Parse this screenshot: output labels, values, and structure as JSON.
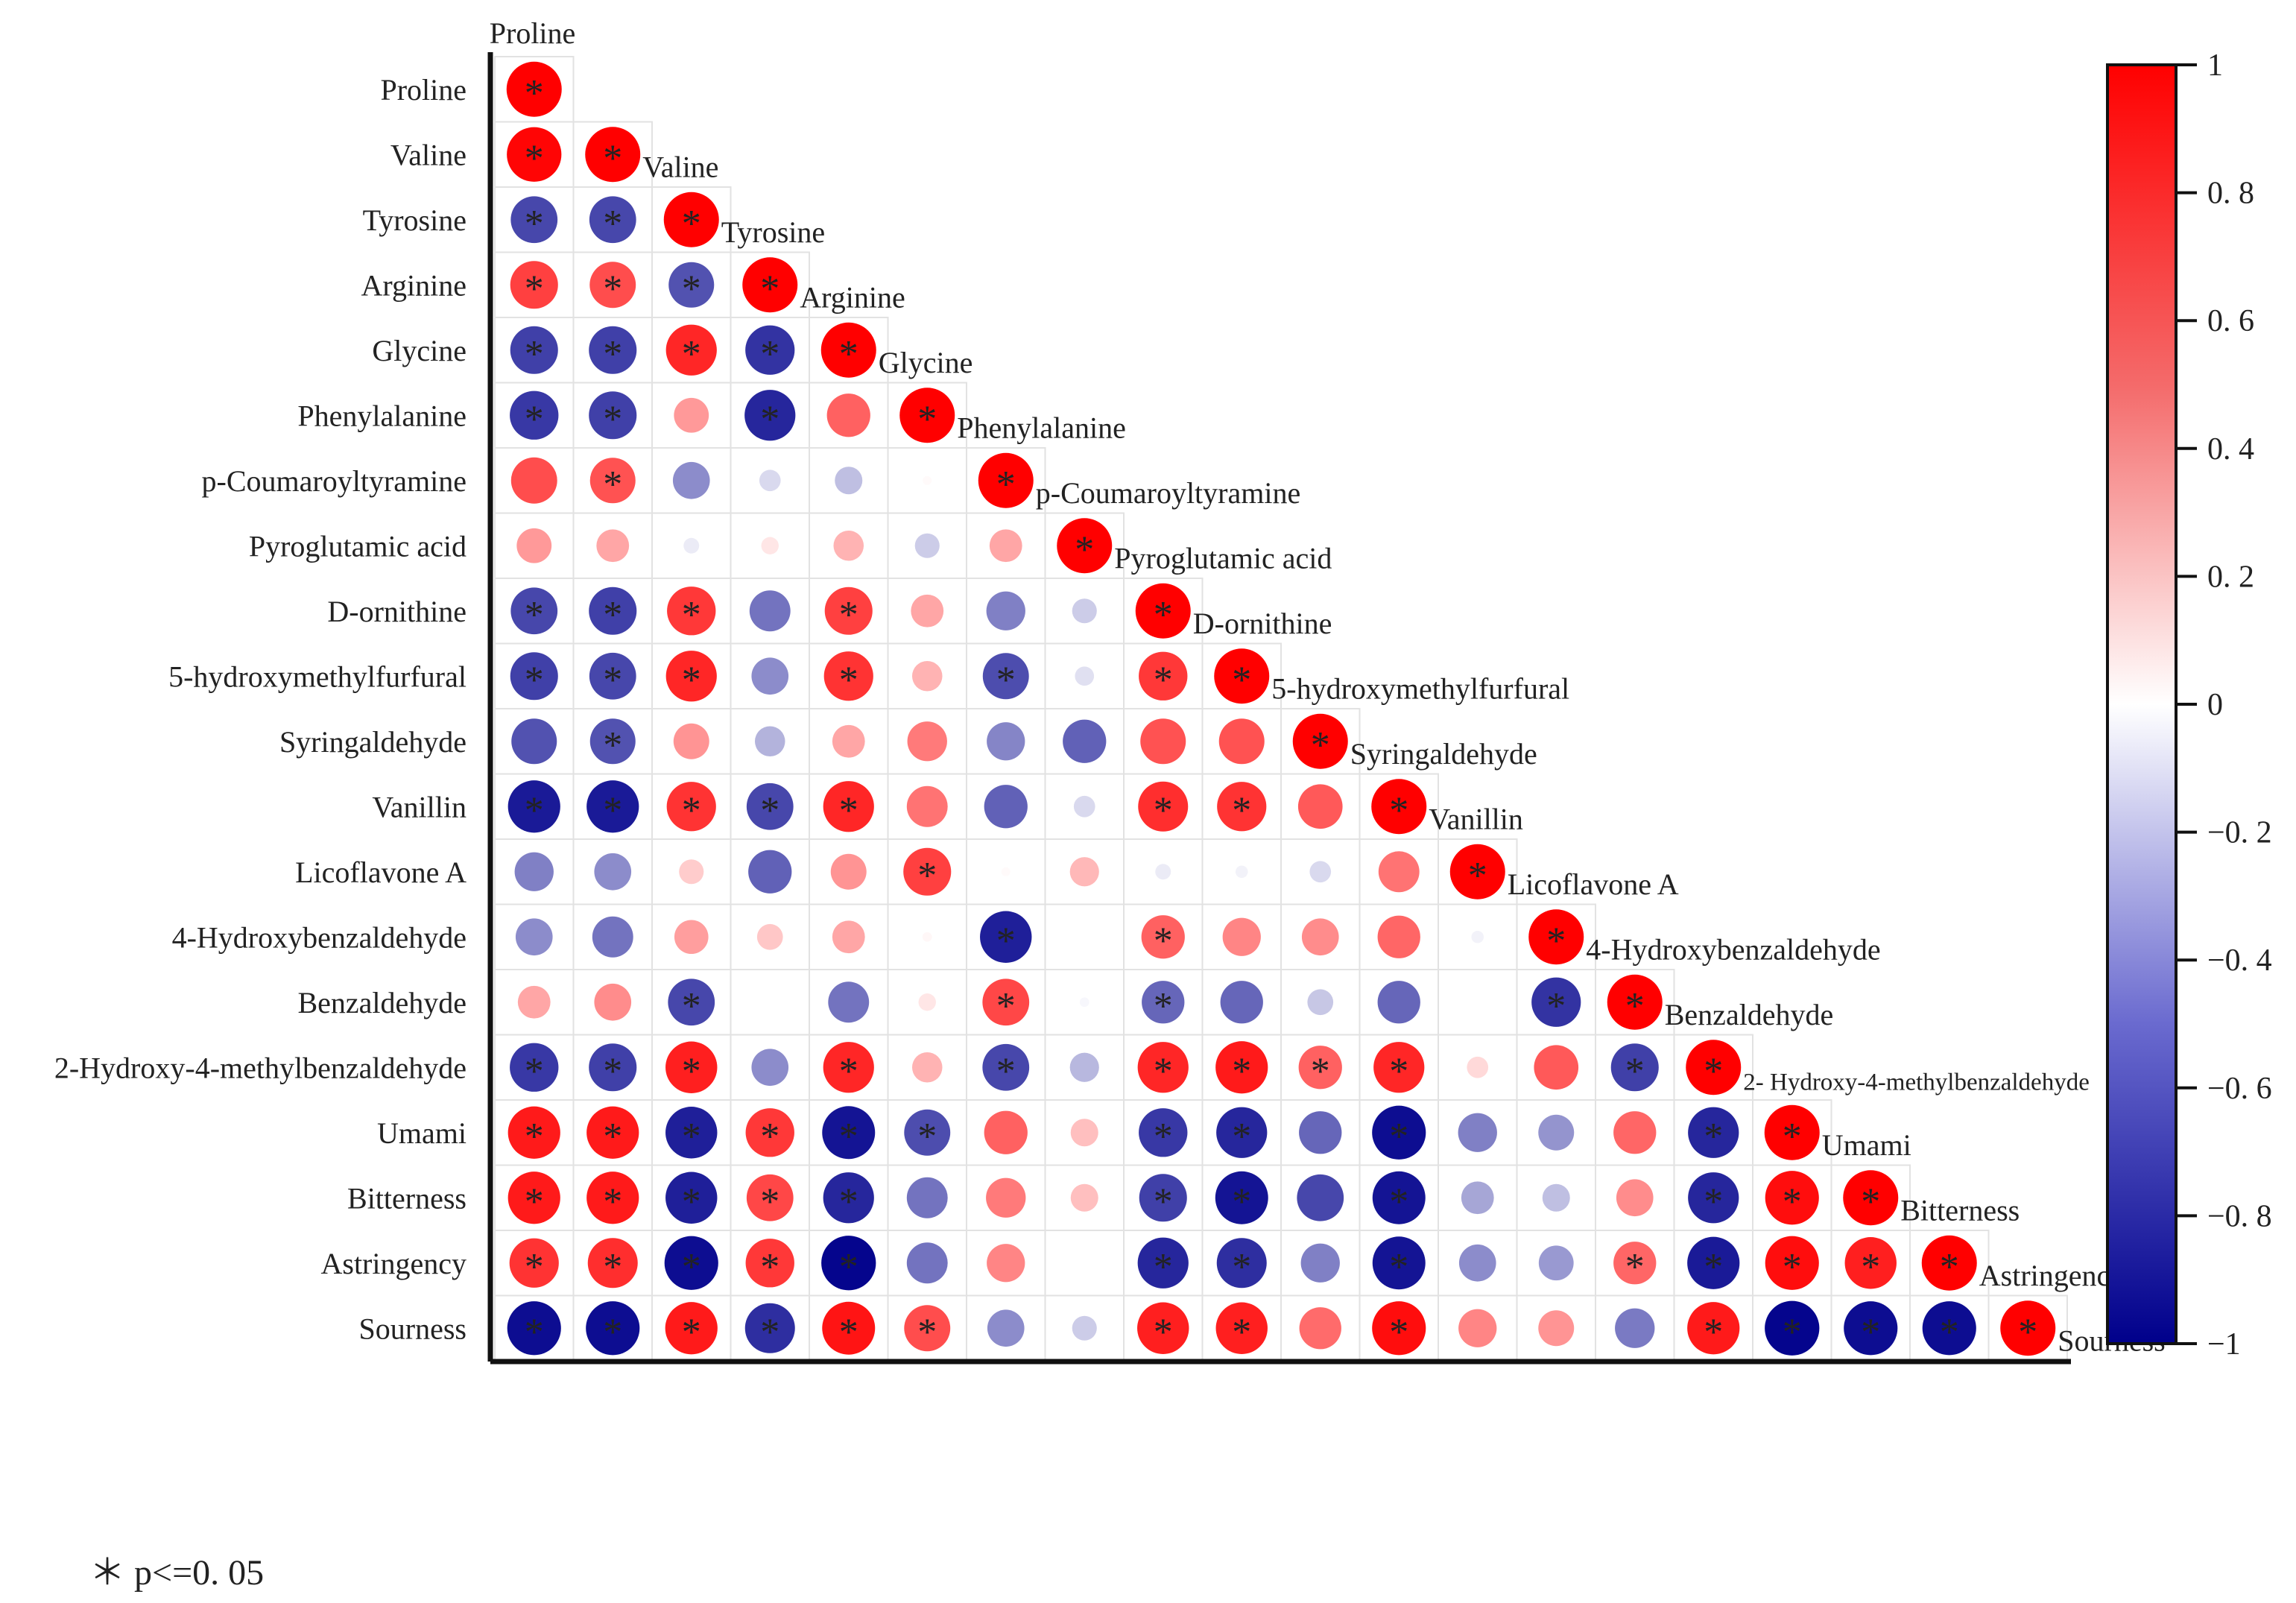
{
  "chart_data": {
    "type": "heatmap",
    "title": "",
    "style": "lower-triangle correlation plot, circle size and color encode correlation coefficient; * marks p<=0.05",
    "variables": [
      "Proline",
      "Valine",
      "Tyrosine",
      "Arginine",
      "Glycine",
      "Phenylalanine",
      "p-Coumaroyltyramine",
      "Pyroglutamic acid",
      "D-ornithine",
      "5-hydroxymethylfurfural",
      "Syringaldehyde",
      "Vanillin",
      "Licoflavone A",
      "4-Hydroxybenzaldehyde",
      "Benzaldehyde",
      "2-Hydroxy-4-methylbenzaldehyde",
      "Umami",
      "Bitterness",
      "Astringency",
      "Sourness"
    ],
    "diagonal_labels": [
      "Proline",
      "Valine",
      "Tyrosine",
      "Arginine",
      "Glycine",
      "Phenylalanine",
      "p-Coumaroyltyramine",
      "Pyroglutamic acid",
      "D-ornithine",
      "5-hydroxymethylfurfural",
      "Syringaldehyde",
      "Vanillin",
      "Licoflavone A",
      "4-Hydroxybenzaldehyde",
      "Benzaldehyde",
      "2- Hydroxy-4-methylbenzaldehyde",
      "Umami",
      "Bitterness",
      "Astringency",
      "Sourness"
    ],
    "matrix": [
      [
        1
      ],
      [
        0.98,
        1
      ],
      [
        -0.72,
        -0.72,
        1
      ],
      [
        0.75,
        0.7,
        -0.68,
        1
      ],
      [
        -0.75,
        -0.75,
        0.85,
        -0.8,
        1
      ],
      [
        -0.78,
        -0.75,
        0.4,
        -0.85,
        0.62,
        1
      ],
      [
        0.7,
        0.68,
        -0.45,
        -0.15,
        -0.25,
        0.02,
        1
      ],
      [
        0.4,
        0.35,
        -0.08,
        0.1,
        0.3,
        -0.2,
        0.35,
        1
      ],
      [
        -0.72,
        -0.75,
        0.78,
        -0.55,
        0.75,
        0.35,
        -0.5,
        -0.2,
        1
      ],
      [
        -0.75,
        -0.72,
        0.85,
        -0.45,
        0.8,
        0.3,
        -0.7,
        -0.12,
        0.78,
        1
      ],
      [
        -0.68,
        -0.68,
        0.42,
        -0.3,
        0.35,
        0.52,
        -0.48,
        -0.62,
        0.68,
        0.68,
        1
      ],
      [
        -0.9,
        -0.9,
        0.8,
        -0.72,
        0.85,
        0.55,
        -0.62,
        -0.15,
        0.82,
        0.8,
        0.65,
        1
      ],
      [
        -0.5,
        -0.45,
        0.2,
        -0.62,
        0.42,
        0.75,
        0.02,
        0.28,
        -0.08,
        -0.05,
        -0.15,
        0.55,
        1
      ],
      [
        -0.45,
        -0.55,
        0.38,
        0.22,
        0.35,
        0.03,
        -0.88,
        0,
        0.62,
        0.48,
        0.45,
        0.6,
        -0.05,
        1
      ],
      [
        0.35,
        0.45,
        -0.72,
        0,
        -0.55,
        0.1,
        0.72,
        -0.03,
        -0.6,
        -0.6,
        -0.22,
        -0.6,
        0,
        -0.8,
        1
      ],
      [
        -0.78,
        -0.75,
        0.88,
        -0.45,
        0.85,
        0.3,
        -0.72,
        -0.28,
        0.85,
        0.9,
        0.62,
        0.85,
        0.15,
        0.65,
        -0.75,
        1
      ],
      [
        0.9,
        0.9,
        -0.88,
        0.78,
        -0.92,
        -0.7,
        0.62,
        0.25,
        -0.78,
        -0.85,
        -0.6,
        -0.95,
        -0.5,
        -0.42,
        0.6,
        -0.85,
        1
      ],
      [
        0.9,
        0.9,
        -0.88,
        0.72,
        -0.85,
        -0.55,
        0.52,
        0.25,
        -0.75,
        -0.92,
        -0.72,
        -0.92,
        -0.35,
        -0.25,
        0.45,
        -0.85,
        0.95,
        1
      ],
      [
        0.8,
        0.82,
        -0.95,
        0.78,
        -0.98,
        -0.55,
        0.48,
        0,
        -0.85,
        -0.82,
        -0.5,
        -0.92,
        -0.45,
        -0.4,
        0.6,
        -0.9,
        0.95,
        0.88,
        1
      ],
      [
        -0.95,
        -0.95,
        0.9,
        -0.82,
        0.92,
        0.7,
        -0.45,
        -0.2,
        0.88,
        0.88,
        0.58,
        0.95,
        0.48,
        0.42,
        -0.52,
        0.9,
        -0.98,
        -0.95,
        -0.95,
        1
      ]
    ],
    "significant": [
      [
        1
      ],
      [
        1,
        1
      ],
      [
        1,
        1,
        1
      ],
      [
        1,
        1,
        1,
        1
      ],
      [
        1,
        1,
        1,
        1,
        1
      ],
      [
        1,
        1,
        0,
        1,
        0,
        1
      ],
      [
        0,
        1,
        0,
        0,
        0,
        0,
        1
      ],
      [
        0,
        0,
        0,
        0,
        0,
        0,
        0,
        1
      ],
      [
        1,
        1,
        1,
        0,
        1,
        0,
        0,
        0,
        1
      ],
      [
        1,
        1,
        1,
        0,
        1,
        0,
        1,
        0,
        1,
        1
      ],
      [
        0,
        1,
        0,
        0,
        0,
        0,
        0,
        0,
        0,
        0,
        1
      ],
      [
        1,
        1,
        1,
        1,
        1,
        0,
        0,
        0,
        1,
        1,
        0,
        1
      ],
      [
        0,
        0,
        0,
        0,
        0,
        1,
        0,
        0,
        0,
        0,
        0,
        0,
        1
      ],
      [
        0,
        0,
        0,
        0,
        0,
        0,
        1,
        0,
        1,
        0,
        0,
        0,
        0,
        1
      ],
      [
        0,
        0,
        1,
        0,
        0,
        0,
        1,
        0,
        1,
        0,
        0,
        0,
        0,
        1,
        1
      ],
      [
        1,
        1,
        1,
        0,
        1,
        0,
        1,
        0,
        1,
        1,
        1,
        1,
        0,
        0,
        1,
        1
      ],
      [
        1,
        1,
        1,
        1,
        1,
        1,
        0,
        0,
        1,
        1,
        0,
        1,
        0,
        0,
        0,
        1,
        1
      ],
      [
        1,
        1,
        1,
        1,
        1,
        0,
        0,
        0,
        1,
        1,
        0,
        1,
        0,
        0,
        0,
        1,
        1,
        1
      ],
      [
        1,
        1,
        1,
        1,
        1,
        0,
        0,
        0,
        1,
        1,
        0,
        1,
        0,
        0,
        1,
        1,
        1,
        1,
        1
      ],
      [
        1,
        1,
        1,
        1,
        1,
        1,
        0,
        0,
        1,
        1,
        0,
        1,
        0,
        0,
        0,
        1,
        1,
        1,
        1,
        1
      ]
    ],
    "colorbar": {
      "range": [
        -1,
        1
      ],
      "tick_labels": [
        "1",
        "0. 8",
        "0. 6",
        "0. 4",
        "0. 2",
        "0",
        "−0. 2",
        "−0. 4",
        "−0. 6",
        "−0. 8",
        "−1"
      ],
      "tick_values": [
        1,
        0.8,
        0.6,
        0.4,
        0.2,
        0,
        -0.2,
        -0.4,
        -0.6,
        -0.8,
        -1
      ],
      "colors": {
        "positive": "#FF0000",
        "zero": "#FFFFFF",
        "negative": "#00008B"
      }
    },
    "significance_marker": "*",
    "legend_note": "＊ p<=0. 05"
  }
}
